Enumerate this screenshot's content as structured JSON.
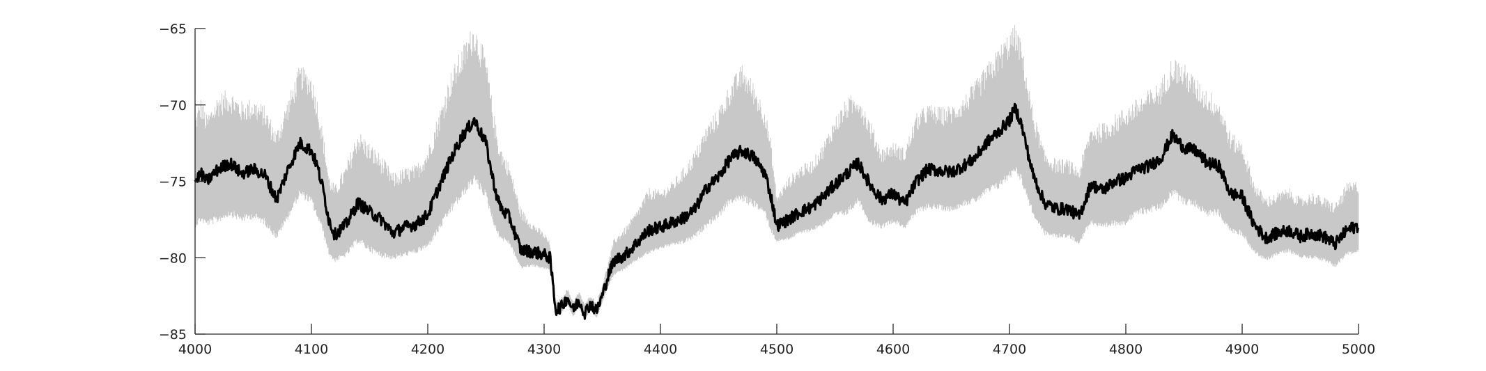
{
  "chart_data": {
    "type": "line",
    "title": "",
    "xlabel": "",
    "ylabel": "",
    "xlim": [
      4000,
      5000
    ],
    "ylim": [
      -85,
      -65
    ],
    "xticks": [
      4000,
      4100,
      4200,
      4300,
      4400,
      4500,
      4600,
      4700,
      4800,
      4900,
      5000
    ],
    "yticks": [
      -65,
      -70,
      -75,
      -80,
      -85
    ],
    "xtick_labels": [
      "4000",
      "4100",
      "4200",
      "4300",
      "4400",
      "4500",
      "4600",
      "4700",
      "4800",
      "4900",
      "5000"
    ],
    "ytick_labels": [
      "−65",
      "−70",
      "−75",
      "−80",
      "−85"
    ],
    "grid": false,
    "legend": "none",
    "colors": {
      "mean": "#000000",
      "band": "#c8c8c8"
    },
    "series": [
      {
        "role": "mean",
        "x": [
          4000,
          4005,
          4010,
          4020,
          4030,
          4040,
          4050,
          4060,
          4070,
          4080,
          4090,
          4100,
          4105,
          4110,
          4115,
          4120,
          4130,
          4140,
          4150,
          4160,
          4170,
          4180,
          4190,
          4200,
          4210,
          4220,
          4230,
          4240,
          4250,
          4255,
          4260,
          4265,
          4270,
          4280,
          4290,
          4300,
          4305,
          4308,
          4310,
          4315,
          4320,
          4325,
          4330,
          4335,
          4340,
          4345,
          4350,
          4355,
          4360,
          4370,
          4380,
          4390,
          4400,
          4410,
          4420,
          4430,
          4440,
          4450,
          4460,
          4470,
          4480,
          4490,
          4495,
          4500,
          4510,
          4520,
          4530,
          4540,
          4550,
          4560,
          4570,
          4580,
          4590,
          4600,
          4610,
          4620,
          4630,
          4640,
          4650,
          4660,
          4670,
          4680,
          4690,
          4700,
          4705,
          4710,
          4720,
          4730,
          4740,
          4750,
          4760,
          4770,
          4780,
          4790,
          4800,
          4810,
          4820,
          4830,
          4840,
          4850,
          4860,
          4870,
          4880,
          4890,
          4900,
          4910,
          4920,
          4930,
          4940,
          4950,
          4960,
          4970,
          4980,
          4990,
          5000
        ],
        "y": [
          -75.0,
          -74.5,
          -75.0,
          -74.2,
          -73.8,
          -74.5,
          -74.2,
          -74.6,
          -76.2,
          -74.2,
          -72.5,
          -73.0,
          -74.0,
          -75.5,
          -77.5,
          -78.5,
          -77.8,
          -76.4,
          -77.0,
          -77.5,
          -78.4,
          -78.0,
          -77.8,
          -77.2,
          -75.3,
          -73.5,
          -72.0,
          -71.0,
          -72.5,
          -74.5,
          -76.2,
          -77.0,
          -77.3,
          -79.5,
          -79.6,
          -79.8,
          -80.0,
          -82.0,
          -83.4,
          -83.2,
          -82.6,
          -83.4,
          -82.8,
          -83.6,
          -83.0,
          -83.5,
          -82.5,
          -81.2,
          -80.2,
          -79.8,
          -79.0,
          -78.2,
          -78.0,
          -77.7,
          -77.4,
          -76.8,
          -75.4,
          -74.7,
          -73.5,
          -73.0,
          -73.4,
          -74.5,
          -76.0,
          -77.9,
          -77.5,
          -77.0,
          -76.7,
          -76.0,
          -75.2,
          -74.5,
          -73.8,
          -75.2,
          -76.2,
          -75.8,
          -76.5,
          -75.0,
          -74.2,
          -74.3,
          -74.4,
          -74.0,
          -73.5,
          -72.5,
          -71.8,
          -71.0,
          -70.2,
          -71.2,
          -74.5,
          -76.4,
          -76.8,
          -76.8,
          -77.3,
          -75.2,
          -75.6,
          -75.0,
          -74.8,
          -74.2,
          -74.0,
          -73.5,
          -72.0,
          -72.8,
          -73.0,
          -73.8,
          -74.0,
          -75.8,
          -76.0,
          -77.8,
          -78.7,
          -78.4,
          -78.2,
          -78.6,
          -78.4,
          -78.6,
          -79.1,
          -78.2,
          -77.9
        ],
        "band_upper": [
          -72.0,
          -71.0,
          -72.0,
          -70.8,
          -70.5,
          -71.2,
          -71.0,
          -71.5,
          -73.0,
          -71.0,
          -69.0,
          -69.5,
          -71.0,
          -73.0,
          -75.5,
          -76.2,
          -75.0,
          -73.0,
          -73.8,
          -74.5,
          -75.5,
          -75.2,
          -75.0,
          -74.0,
          -71.8,
          -69.5,
          -68.0,
          -66.5,
          -68.5,
          -71.0,
          -73.2,
          -74.2,
          -74.8,
          -77.5,
          -78.2,
          -78.8,
          -79.3,
          -81.8,
          -83.0,
          -82.8,
          -82.2,
          -83.0,
          -82.4,
          -83.2,
          -82.6,
          -83.1,
          -82.0,
          -80.6,
          -79.2,
          -78.5,
          -77.5,
          -76.2,
          -76.3,
          -75.8,
          -75.0,
          -74.0,
          -72.5,
          -71.5,
          -70.0,
          -69.0,
          -70.0,
          -71.5,
          -73.5,
          -76.5,
          -75.5,
          -74.8,
          -74.5,
          -73.5,
          -72.0,
          -71.0,
          -70.5,
          -72.2,
          -73.8,
          -73.4,
          -73.8,
          -71.8,
          -71.2,
          -71.4,
          -71.3,
          -70.8,
          -70.0,
          -69.0,
          -68.0,
          -67.0,
          -66.5,
          -67.5,
          -71.5,
          -74.0,
          -74.5,
          -74.5,
          -75.0,
          -72.5,
          -72.5,
          -72.0,
          -71.5,
          -71.0,
          -70.5,
          -70.0,
          -68.5,
          -69.0,
          -69.8,
          -70.5,
          -71.0,
          -73.0,
          -73.5,
          -75.8,
          -76.8,
          -76.5,
          -76.2,
          -76.8,
          -76.5,
          -76.8,
          -77.2,
          -76.0,
          -75.8
        ],
        "band_lower": [
          -77.6,
          -77.2,
          -77.5,
          -77.2,
          -76.8,
          -77.2,
          -77.0,
          -77.4,
          -78.4,
          -77.0,
          -75.5,
          -76.0,
          -77.0,
          -78.0,
          -79.5,
          -80.0,
          -79.6,
          -78.6,
          -79.2,
          -79.6,
          -79.8,
          -79.6,
          -79.4,
          -79.0,
          -77.8,
          -76.5,
          -75.5,
          -74.5,
          -75.6,
          -77.0,
          -78.2,
          -78.6,
          -78.8,
          -80.5,
          -80.4,
          -80.6,
          -80.7,
          -82.3,
          -83.8,
          -83.6,
          -83.0,
          -83.8,
          -83.2,
          -84.0,
          -83.4,
          -83.9,
          -82.9,
          -81.8,
          -81.0,
          -80.6,
          -80.0,
          -79.5,
          -79.2,
          -79.0,
          -78.8,
          -78.4,
          -77.6,
          -77.0,
          -76.0,
          -75.8,
          -76.2,
          -76.8,
          -78.0,
          -78.8,
          -78.6,
          -78.2,
          -78.0,
          -77.6,
          -77.0,
          -76.8,
          -76.0,
          -77.4,
          -77.8,
          -77.4,
          -77.8,
          -76.8,
          -76.4,
          -76.5,
          -76.6,
          -76.2,
          -76.0,
          -75.4,
          -75.0,
          -74.3,
          -73.8,
          -74.5,
          -76.8,
          -78.2,
          -78.4,
          -78.4,
          -78.8,
          -77.4,
          -77.8,
          -77.5,
          -77.4,
          -76.8,
          -76.6,
          -76.4,
          -75.4,
          -76.0,
          -76.2,
          -76.8,
          -76.8,
          -78.0,
          -78.2,
          -79.4,
          -80.0,
          -79.6,
          -79.4,
          -79.8,
          -79.8,
          -80.0,
          -80.4,
          -79.6,
          -79.4
        ]
      }
    ]
  }
}
